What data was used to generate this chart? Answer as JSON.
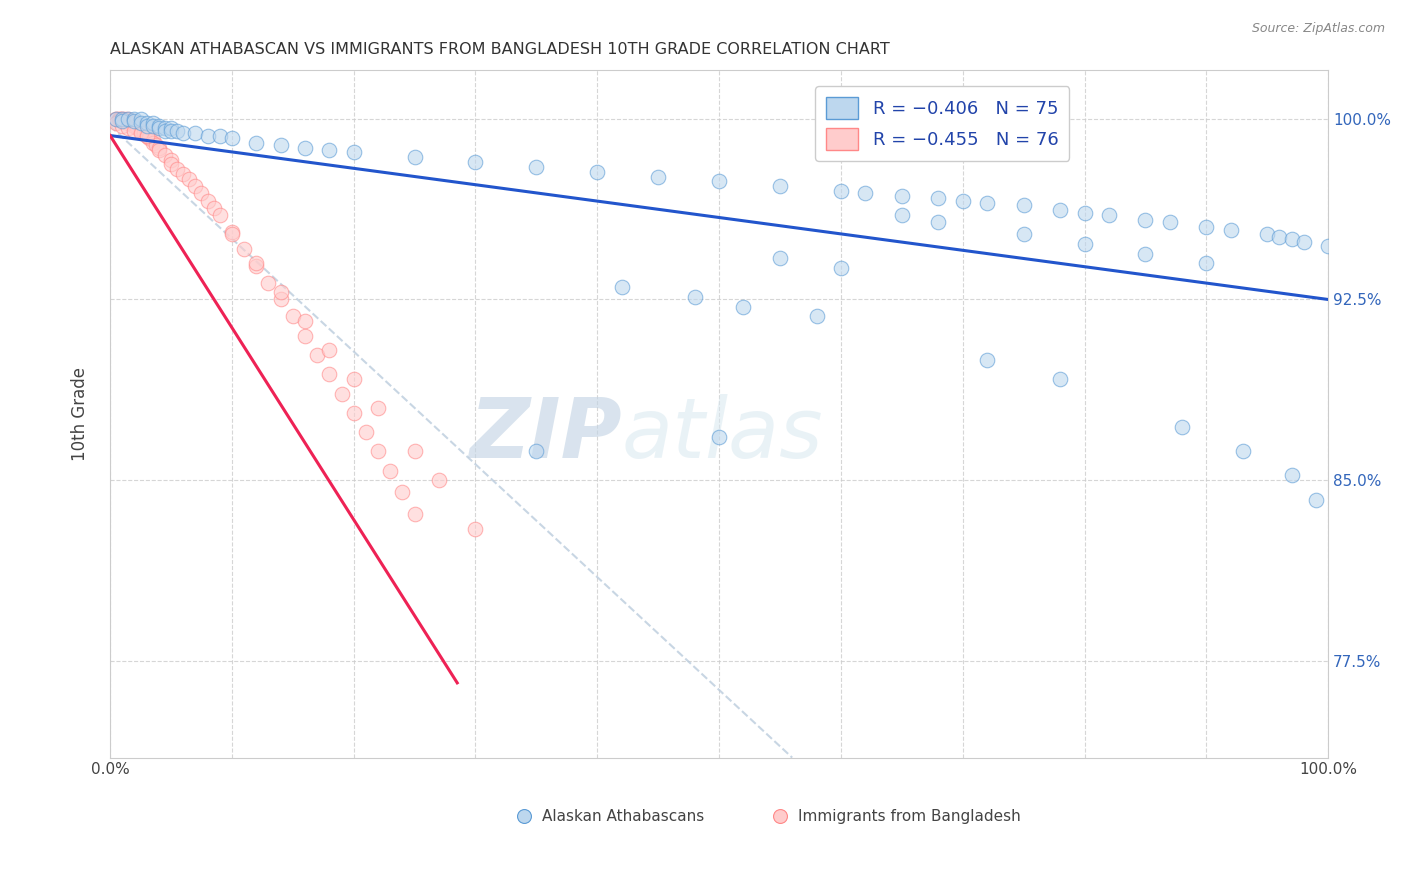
{
  "title": "ALASKAN ATHABASCAN VS IMMIGRANTS FROM BANGLADESH 10TH GRADE CORRELATION CHART",
  "source_text": "Source: ZipAtlas.com",
  "ylabel": "10th Grade",
  "ytick_values": [
    0.775,
    0.85,
    0.925,
    1.0
  ],
  "xlim": [
    0.0,
    1.0
  ],
  "ylim": [
    0.735,
    1.02
  ],
  "legend_r1": "R = −0.406",
  "legend_n1": "N = 75",
  "legend_r2": "R = −0.455",
  "legend_n2": "N = 76",
  "blue_fill": "#BDD7EE",
  "blue_edge": "#5B9BD5",
  "pink_fill": "#FFCCCC",
  "pink_edge": "#FF8888",
  "blue_line_color": "#2255CC",
  "pink_line_color": "#EE2255",
  "gray_line_color": "#BBCCDD",
  "watermark_zip": "ZIP",
  "watermark_atlas": "atlas",
  "watermark_color": "#C8D8E8",
  "blue_scatter_x": [
    0.005,
    0.01,
    0.01,
    0.015,
    0.02,
    0.02,
    0.025,
    0.025,
    0.03,
    0.03,
    0.035,
    0.035,
    0.04,
    0.04,
    0.045,
    0.045,
    0.05,
    0.05,
    0.055,
    0.06,
    0.07,
    0.08,
    0.09,
    0.1,
    0.12,
    0.14,
    0.16,
    0.18,
    0.2,
    0.25,
    0.3,
    0.35,
    0.4,
    0.45,
    0.5,
    0.55,
    0.6,
    0.62,
    0.65,
    0.68,
    0.7,
    0.72,
    0.75,
    0.78,
    0.8,
    0.82,
    0.85,
    0.87,
    0.9,
    0.92,
    0.95,
    0.96,
    0.97,
    0.98,
    1.0,
    0.65,
    0.68,
    0.75,
    0.8,
    0.85,
    0.9,
    0.55,
    0.6,
    0.42,
    0.48,
    0.52,
    0.58,
    0.72,
    0.78,
    0.88,
    0.93,
    0.97,
    0.99,
    0.5,
    0.35
  ],
  "blue_scatter_y": [
    1.0,
    1.0,
    0.999,
    1.0,
    1.0,
    0.999,
    1.0,
    0.998,
    0.998,
    0.997,
    0.998,
    0.997,
    0.997,
    0.996,
    0.996,
    0.995,
    0.996,
    0.995,
    0.995,
    0.994,
    0.994,
    0.993,
    0.993,
    0.992,
    0.99,
    0.989,
    0.988,
    0.987,
    0.986,
    0.984,
    0.982,
    0.98,
    0.978,
    0.976,
    0.974,
    0.972,
    0.97,
    0.969,
    0.968,
    0.967,
    0.966,
    0.965,
    0.964,
    0.962,
    0.961,
    0.96,
    0.958,
    0.957,
    0.955,
    0.954,
    0.952,
    0.951,
    0.95,
    0.949,
    0.947,
    0.96,
    0.957,
    0.952,
    0.948,
    0.944,
    0.94,
    0.942,
    0.938,
    0.93,
    0.926,
    0.922,
    0.918,
    0.9,
    0.892,
    0.872,
    0.862,
    0.852,
    0.842,
    0.868,
    0.862
  ],
  "pink_scatter_x": [
    0.005,
    0.005,
    0.007,
    0.008,
    0.01,
    0.01,
    0.01,
    0.012,
    0.012,
    0.015,
    0.015,
    0.015,
    0.018,
    0.018,
    0.02,
    0.02,
    0.02,
    0.022,
    0.022,
    0.025,
    0.025,
    0.028,
    0.028,
    0.03,
    0.03,
    0.03,
    0.032,
    0.032,
    0.035,
    0.035,
    0.038,
    0.04,
    0.04,
    0.045,
    0.05,
    0.05,
    0.055,
    0.06,
    0.065,
    0.07,
    0.075,
    0.08,
    0.085,
    0.09,
    0.1,
    0.11,
    0.12,
    0.13,
    0.14,
    0.15,
    0.16,
    0.17,
    0.18,
    0.19,
    0.2,
    0.21,
    0.22,
    0.23,
    0.24,
    0.25,
    0.1,
    0.12,
    0.14,
    0.16,
    0.18,
    0.2,
    0.22,
    0.25,
    0.27,
    0.3,
    0.005,
    0.01,
    0.015,
    0.02,
    0.025,
    0.03
  ],
  "pink_scatter_y": [
    1.0,
    1.0,
    1.0,
    1.0,
    1.0,
    1.0,
    0.999,
    1.0,
    0.999,
    1.0,
    0.999,
    0.998,
    0.999,
    0.998,
    0.998,
    0.998,
    0.997,
    0.997,
    0.996,
    0.996,
    0.995,
    0.995,
    0.994,
    0.994,
    0.994,
    0.993,
    0.993,
    0.992,
    0.991,
    0.99,
    0.989,
    0.988,
    0.987,
    0.985,
    0.983,
    0.981,
    0.979,
    0.977,
    0.975,
    0.972,
    0.969,
    0.966,
    0.963,
    0.96,
    0.953,
    0.946,
    0.939,
    0.932,
    0.925,
    0.918,
    0.91,
    0.902,
    0.894,
    0.886,
    0.878,
    0.87,
    0.862,
    0.854,
    0.845,
    0.836,
    0.952,
    0.94,
    0.928,
    0.916,
    0.904,
    0.892,
    0.88,
    0.862,
    0.85,
    0.83,
    0.998,
    0.997,
    0.996,
    0.995,
    0.994,
    0.993
  ],
  "blue_trend_x": [
    0.0,
    1.0
  ],
  "blue_trend_y": [
    0.993,
    0.925
  ],
  "pink_trend_x": [
    0.0,
    0.285
  ],
  "pink_trend_y": [
    0.993,
    0.766
  ],
  "gray_trend_x": [
    0.0,
    0.56
  ],
  "gray_trend_y": [
    0.997,
    0.735
  ]
}
